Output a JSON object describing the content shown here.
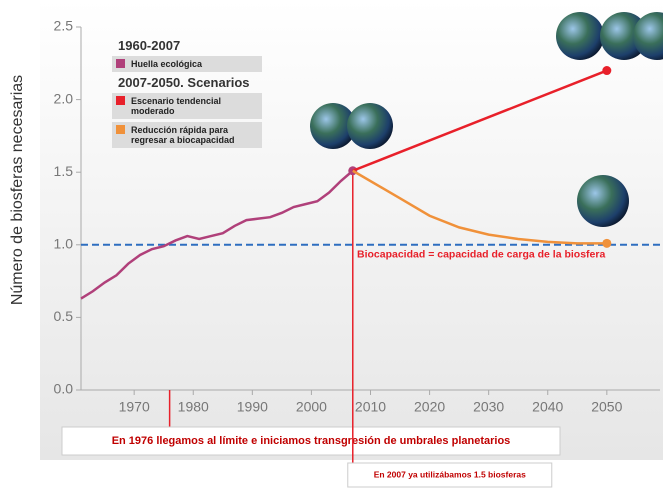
{
  "chart_data": {
    "type": "line",
    "y_label": "Número de biosferas necesarias",
    "xlim": [
      1961,
      2059
    ],
    "ylim": [
      0,
      2.5
    ],
    "xticks": [
      1970,
      1980,
      1990,
      2000,
      2010,
      2020,
      2030,
      2040,
      2050
    ],
    "yticks": [
      {
        "value": 0,
        "label": "0.0"
      },
      0.5,
      {
        "value": 1,
        "label": "1.0"
      },
      1.5,
      {
        "value": 2,
        "label": "2.0"
      },
      2.5
    ],
    "legend_headings": [
      "1960-2007",
      "2007-2050. Scenarios"
    ],
    "series": [
      {
        "name": "Huella ecológica",
        "color": "#b0407a",
        "x": [
          1961,
          1963,
          1965,
          1967,
          1969,
          1971,
          1973,
          1975,
          1977,
          1979,
          1981,
          1983,
          1985,
          1987,
          1989,
          1991,
          1993,
          1995,
          1997,
          1999,
          2001,
          2003,
          2005,
          2007
        ],
        "values": [
          0.63,
          0.68,
          0.74,
          0.79,
          0.87,
          0.93,
          0.97,
          0.99,
          1.03,
          1.06,
          1.04,
          1.06,
          1.08,
          1.13,
          1.17,
          1.18,
          1.19,
          1.22,
          1.26,
          1.28,
          1.3,
          1.36,
          1.44,
          1.51
        ]
      },
      {
        "name": "Escenario tendencial moderado",
        "color": "#e8202a",
        "x": [
          2007,
          2050
        ],
        "values": [
          1.51,
          2.2
        ]
      },
      {
        "name": "Reducción rápida para regresar a biocapacidad",
        "color": "#f0913a",
        "x": [
          2007,
          2015,
          2020,
          2025,
          2030,
          2035,
          2040,
          2045,
          2050
        ],
        "values": [
          1.51,
          1.32,
          1.2,
          1.12,
          1.07,
          1.04,
          1.02,
          1.01,
          1.01
        ]
      }
    ],
    "reference_line": {
      "value": 1,
      "color": "#2e6ec0",
      "label": "Biocapacidad = capacidad de carga de la biosfera"
    },
    "annotations": [
      {
        "x": 1976,
        "text": "En 1976 llegamos al límite e iniciamos transgresión de umbrales planetarios"
      },
      {
        "x": 2007,
        "text": "En 2007 ya utilizábamos 1.5 biosferas"
      }
    ]
  }
}
